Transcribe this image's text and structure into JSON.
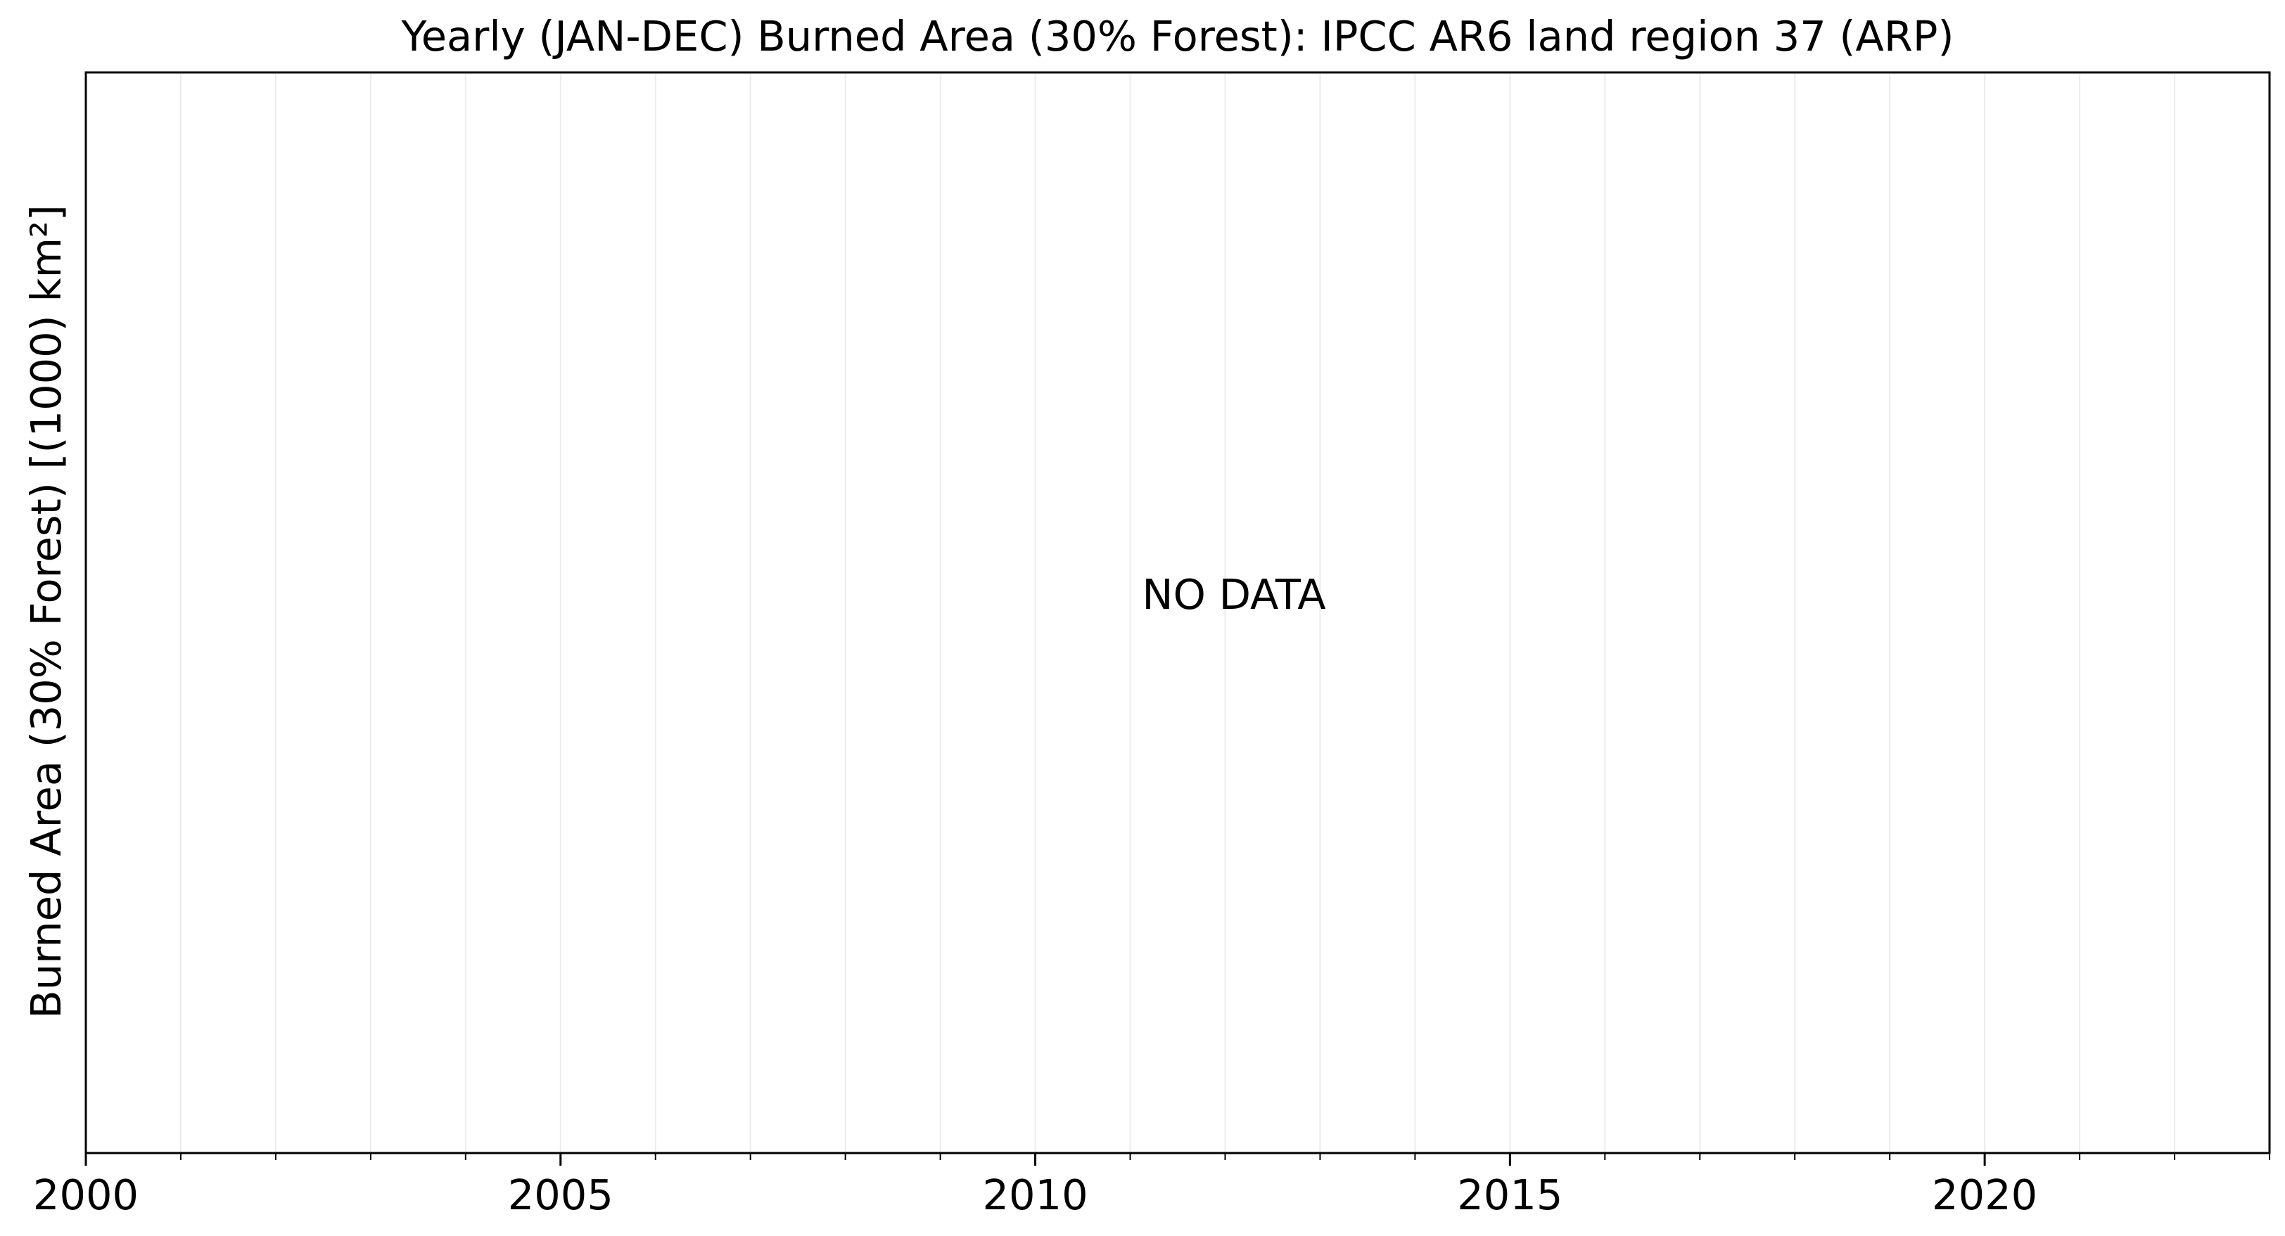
{
  "chart_data": {
    "type": "line",
    "title": "Yearly (JAN-DEC) Burned Area (30% Forest): IPCC AR6 land region 37 (ARP)",
    "ylabel": "Burned Area (30% Forest) [(1000) km²]",
    "xlabel": "",
    "xlim": [
      2000,
      2023
    ],
    "x_major_ticks": [
      2000,
      2005,
      2010,
      2015,
      2020
    ],
    "x_tick_labels": [
      "2000",
      "2005",
      "2010",
      "2015",
      "2020"
    ],
    "x_minor_ticks": [
      2001,
      2002,
      2003,
      2004,
      2006,
      2007,
      2008,
      2009,
      2011,
      2012,
      2013,
      2014,
      2016,
      2017,
      2018,
      2019,
      2021,
      2022,
      2023
    ],
    "grid": true,
    "series": [],
    "annotation": "NO DATA"
  }
}
